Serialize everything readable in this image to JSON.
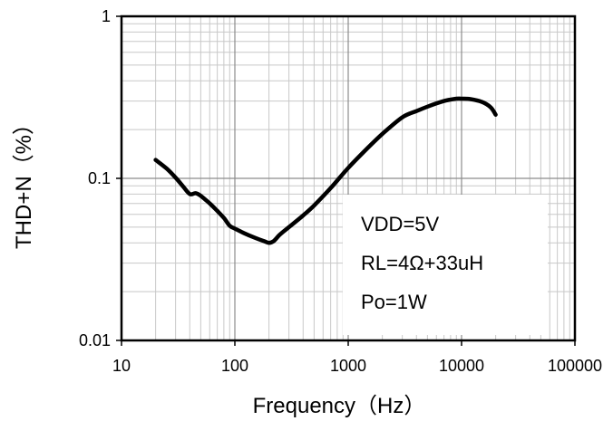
{
  "chart_data": {
    "type": "line",
    "title": "",
    "xlabel": "Frequency（Hz）",
    "ylabel": "THD+N（%）",
    "xscale": "log",
    "yscale": "log",
    "xlim": [
      10,
      100000
    ],
    "ylim": [
      0.01,
      1
    ],
    "grid": true,
    "x_ticks": [
      {
        "value": 10,
        "label": "10"
      },
      {
        "value": 100,
        "label": "100"
      },
      {
        "value": 1000,
        "label": "1000"
      },
      {
        "value": 10000,
        "label": "10000"
      },
      {
        "value": 100000,
        "label": "100000"
      }
    ],
    "y_ticks": [
      {
        "value": 1,
        "label": "1"
      },
      {
        "value": 0.1,
        "label": "0.1"
      },
      {
        "value": 0.01,
        "label": "0.01"
      }
    ],
    "series": [
      {
        "color": "#000000",
        "x": [
          20,
          25,
          30,
          35,
          40,
          45,
          50,
          60,
          70,
          80,
          90,
          100,
          120,
          150,
          180,
          200,
          220,
          250,
          300,
          400,
          500,
          700,
          1000,
          1500,
          2000,
          3000,
          4000,
          5000,
          7000,
          9000,
          10000,
          12000,
          15000,
          18000,
          20000
        ],
        "y": [
          0.13,
          0.115,
          0.101,
          0.089,
          0.08,
          0.081,
          0.078,
          0.07,
          0.063,
          0.057,
          0.051,
          0.049,
          0.046,
          0.043,
          0.041,
          0.04,
          0.041,
          0.045,
          0.05,
          0.059,
          0.068,
          0.087,
          0.116,
          0.155,
          0.188,
          0.238,
          0.26,
          0.277,
          0.3,
          0.31,
          0.31,
          0.308,
          0.297,
          0.275,
          0.247
        ]
      }
    ],
    "annotations": [
      "VDD=5V",
      "RL=4Ω+33uH",
      "Po=1W"
    ]
  }
}
